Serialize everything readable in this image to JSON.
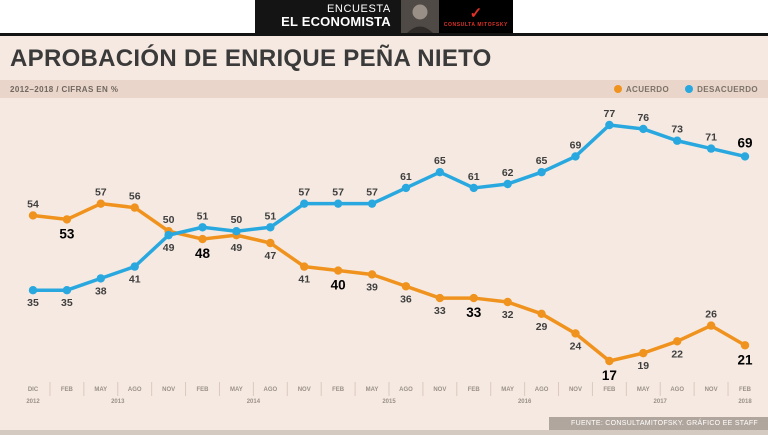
{
  "header": {
    "encuesta": "ENCUESTA",
    "brand": "EL ECONOMISTA",
    "logo_text": "CONSULTA MITOFSKY"
  },
  "title": "APROBACIÓN DE ENRIQUE PEÑA NIETO",
  "subtitle": "2012–2018 / CIFRAS EN %",
  "legend": [
    {
      "label": "ACUERDO",
      "color": "#f0931e"
    },
    {
      "label": "DESACUERDO",
      "color": "#29a8e0"
    }
  ],
  "footer": "FUENTE: CONSULTAMITOFSKY. GRÁFICO EE STAFF",
  "chart_data": {
    "type": "line",
    "title": "APROBACIÓN DE ENRIQUE PEÑA NIETO",
    "subtitle": "2012–2018 / CIFRAS EN %",
    "ylim": [
      10,
      85
    ],
    "grid": false,
    "legend_position": "top-right",
    "x_labels": [
      "DIC",
      "FEB",
      "MAY",
      "AGO",
      "NOV",
      "FEB",
      "MAY",
      "AGO",
      "NOV",
      "FEB",
      "MAY",
      "AGO",
      "NOV",
      "FEB",
      "MAY",
      "AGO",
      "NOV",
      "FEB",
      "MAY",
      "AGO",
      "NOV",
      "FEB"
    ],
    "year_groups": [
      {
        "label": "2012",
        "from": 0,
        "to": 0
      },
      {
        "label": "2013",
        "from": 1,
        "to": 4
      },
      {
        "label": "2014",
        "from": 5,
        "to": 8
      },
      {
        "label": "2015",
        "from": 9,
        "to": 12
      },
      {
        "label": "2016",
        "from": 13,
        "to": 16
      },
      {
        "label": "2017",
        "from": 17,
        "to": 20
      },
      {
        "label": "2018",
        "from": 21,
        "to": 21
      }
    ],
    "series": [
      {
        "name": "ACUERDO",
        "color": "#f0931e",
        "values": [
          54,
          53,
          57,
          56,
          50,
          48,
          49,
          47,
          41,
          40,
          39,
          36,
          33,
          33,
          32,
          29,
          24,
          17,
          19,
          22,
          26,
          21
        ],
        "label_pos": [
          "above",
          "below",
          "above",
          "above",
          "above",
          "below",
          "below",
          "below",
          "below",
          "below",
          "below",
          "below",
          "below",
          "below",
          "below",
          "below",
          "below",
          "below",
          "below",
          "below",
          "above",
          "below"
        ],
        "bold": [
          false,
          true,
          false,
          false,
          false,
          true,
          false,
          false,
          false,
          true,
          false,
          false,
          false,
          true,
          false,
          false,
          false,
          true,
          false,
          false,
          false,
          true
        ]
      },
      {
        "name": "DESACUERDO",
        "color": "#29a8e0",
        "values": [
          35,
          35,
          38,
          41,
          49,
          51,
          50,
          51,
          57,
          57,
          57,
          61,
          65,
          61,
          62,
          65,
          69,
          77,
          76,
          73,
          71,
          69
        ],
        "label_pos": [
          "below",
          "below",
          "below",
          "below",
          "below",
          "above",
          "above",
          "above",
          "above",
          "above",
          "above",
          "above",
          "above",
          "above",
          "above",
          "above",
          "above",
          "above",
          "above",
          "above",
          "above",
          "above"
        ],
        "bold": [
          false,
          false,
          false,
          false,
          false,
          false,
          false,
          false,
          false,
          false,
          false,
          false,
          false,
          false,
          false,
          false,
          false,
          false,
          false,
          false,
          false,
          true
        ]
      }
    ]
  }
}
